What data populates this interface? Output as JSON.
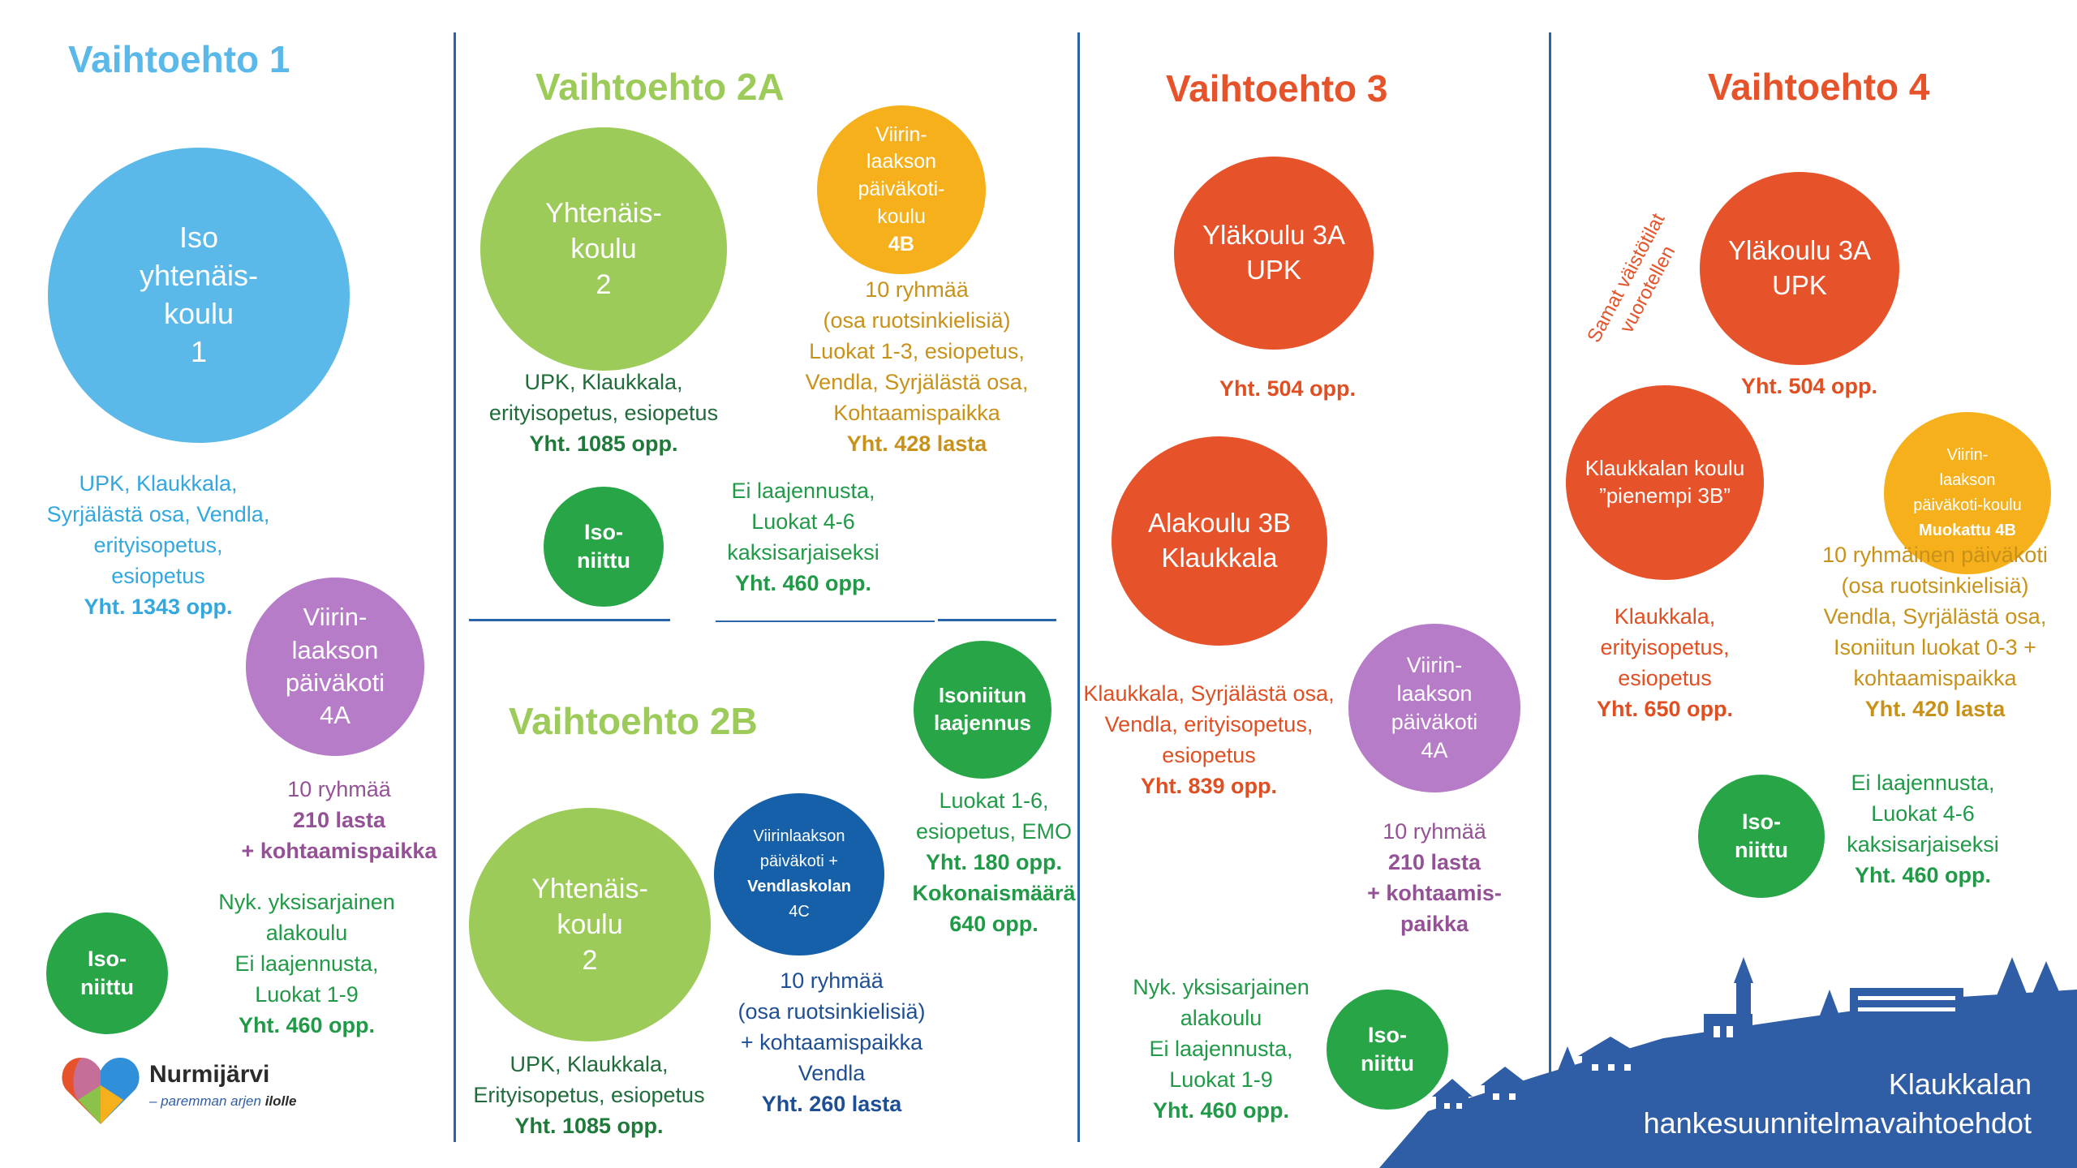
{
  "col1": {
    "title": "Vaihtoehto 1",
    "big": [
      "Iso",
      "yhtenäis-",
      "koulu",
      "1"
    ],
    "big_caption": [
      "UPK, Klaukkala,",
      "Syrjälästä osa, Vendla,",
      "erityisopetus,",
      "esiopetus"
    ],
    "big_total": "Yht. 1343 opp.",
    "pk": [
      "Viirin-",
      "laakson",
      "päiväkoti",
      "4A"
    ],
    "pk_caption": "10 ryhmää",
    "pk_total": "210 lasta",
    "pk_extra": "+ kohtaamispaikka",
    "iso": [
      "Iso-",
      "niittu"
    ],
    "iso_caption": [
      "Nyk. yksisarjainen",
      "alakoulu",
      "Ei laajennusta,",
      "Luokat 1-9"
    ],
    "iso_total": "Yht. 460 opp."
  },
  "col2a": {
    "title": "Vaihtoehto 2A",
    "big": [
      "Yhtenäis-",
      "koulu",
      "2"
    ],
    "big_caption": [
      "UPK, Klaukkala,",
      "erityisopetus, esiopetus"
    ],
    "big_total": "Yht. 1085 opp.",
    "pk": [
      "Viirin-",
      "laakson",
      "päiväkoti-",
      "koulu",
      "4B"
    ],
    "pk_caption": [
      "10 ryhmää",
      "(osa ruotsinkielisiä)",
      "Luokat 1-3, esiopetus,",
      "Vendla, Syrjälästä osa,",
      "Kohtaamispaikka"
    ],
    "pk_total": "Yht. 428 lasta",
    "iso": [
      "Iso-",
      "niittu"
    ],
    "iso_caption": [
      "Ei laajennusta,",
      "Luokat 4-6",
      "kaksisarjaiseksi"
    ],
    "iso_total": "Yht. 460 opp."
  },
  "col2b": {
    "title": "Vaihtoehto 2B",
    "big": [
      "Yhtenäis-",
      "koulu",
      "2"
    ],
    "big_caption": [
      "UPK, Klaukkala,",
      "Erityisopetus, esiopetus"
    ],
    "big_total": "Yht. 1085 opp.",
    "pk": [
      "Viirinlaakson",
      "päiväkoti +",
      "Vendlaskolan",
      "4C"
    ],
    "pk_caption": [
      "10 ryhmää",
      "(osa ruotsinkielisiä)",
      "+ kohtaamispaikka",
      "Vendla"
    ],
    "pk_total": "Yht. 260 lasta",
    "iso": [
      "Isoniitun",
      "laajennus"
    ],
    "iso_caption": [
      "Luokat 1-6,",
      "esiopetus, EMO"
    ],
    "iso_total": [
      "Yht. 180 opp.",
      "Kokonaismäärä",
      "640 opp."
    ]
  },
  "col3": {
    "title": "Vaihtoehto 3",
    "top": [
      "Yläkoulu 3A",
      "UPK"
    ],
    "top_total": "Yht. 504 opp.",
    "ala": [
      "Alakoulu 3B",
      "Klaukkala"
    ],
    "ala_caption": [
      "Klaukkala, Syrjälästä osa,",
      "Vendla, erityisopetus,",
      "esiopetus"
    ],
    "ala_total": "Yht. 839 opp.",
    "pk": [
      "Viirin-",
      "laakson",
      "päiväkoti",
      "4A"
    ],
    "pk_caption": "10 ryhmää",
    "pk_total": [
      "210 lasta",
      "+ kohtaamis-",
      "paikka"
    ],
    "iso": [
      "Iso-",
      "niittu"
    ],
    "iso_caption": [
      "Nyk. yksisarjainen",
      "alakoulu",
      "Ei laajennusta,",
      "Luokat 1-9"
    ],
    "iso_total": "Yht. 460 opp."
  },
  "col4": {
    "title": "Vaihtoehto 4",
    "note": [
      "Samat väistötilat",
      "vuorotellen"
    ],
    "top": [
      "Yläkoulu 3A",
      "UPK"
    ],
    "top_total": "Yht. 504 opp.",
    "kl": [
      "Klaukkalan koulu",
      "”pienempi 3B”"
    ],
    "kl_caption": [
      "Klaukkala,",
      "erityisopetus,",
      "esiopetus"
    ],
    "kl_total": "Yht. 650 opp.",
    "pk": [
      "Viirin-",
      "laakson",
      "päiväkoti-koulu",
      "Muokattu 4B"
    ],
    "pk_caption": [
      "10 ryhmäinen päiväkoti",
      "(osa ruotsinkielisiä)",
      "Vendla, Syrjälästä osa,",
      "Isoniitun luokat 0-3 +",
      "kohtaamispaikka"
    ],
    "pk_total": "Yht. 420 lasta",
    "iso": [
      "Iso-",
      "niittu"
    ],
    "iso_caption": [
      "Ei laajennusta,",
      "Luokat 4-6",
      "kaksisarjaiseksi"
    ],
    "iso_total": "Yht. 460 opp."
  },
  "footer": {
    "logo_name": "Nurmijärvi",
    "logo_slogan": "– paremman arjen ",
    "logo_slogan_end": "ilolle",
    "banner": [
      "Klaukkalan",
      "hankesuunnitelmavaihtoehdot"
    ]
  },
  "colors": {
    "blue": "#5ab9e8",
    "green": "#27a547",
    "lgreen": "#9ccb5a",
    "orange": "#e6532a",
    "amber": "#f5b01c",
    "purple": "#b67cc8",
    "navy": "#1560a8",
    "banner": "#2f5ea6"
  }
}
